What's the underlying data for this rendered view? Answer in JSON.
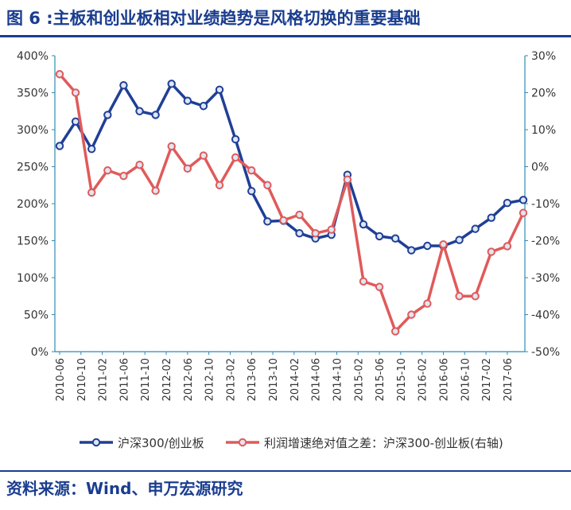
{
  "title": "图 6 :主板和创业板相对业绩趋势是风格切换的重要基础",
  "source": "资料来源：Wind、申万宏源研究",
  "colors": {
    "series1": "#1f3f96",
    "series2": "#e05a5a",
    "axis": "#2d8cb0",
    "title": "#1a3d8f"
  },
  "chart_data": {
    "type": "line",
    "x": [
      "2010-06",
      "2010-08",
      "2010-10",
      "2010-12",
      "2011-02",
      "2011-04",
      "2011-06",
      "2011-08",
      "2011-10",
      "2011-12",
      "2012-02",
      "2012-04",
      "2012-06",
      "2012-08",
      "2012-10",
      "2012-12",
      "2013-02",
      "2013-04",
      "2013-06",
      "2013-08",
      "2013-10",
      "2013-12",
      "2014-02",
      "2014-04",
      "2014-06",
      "2014-08",
      "2014-10",
      "2014-12",
      "2015-02",
      "2015-04",
      "2015-06",
      "2015-08",
      "2015-10",
      "2015-12",
      "2016-02",
      "2016-04",
      "2016-06",
      "2016-08",
      "2016-10",
      "2016-12",
      "2017-02",
      "2017-04",
      "2017-06",
      "2017-08"
    ],
    "x_tick_labels": [
      "2010-06",
      "2010-10",
      "2011-02",
      "2011-06",
      "2011-10",
      "2012-02",
      "2012-06",
      "2012-10",
      "2013-02",
      "2013-06",
      "2013-10",
      "2014-02",
      "2014-06",
      "2014-10",
      "2015-02",
      "2015-06",
      "2015-10",
      "2016-02",
      "2016-06",
      "2016-10",
      "2017-02",
      "2017-06"
    ],
    "y_left": {
      "range": [
        0,
        400
      ],
      "ticks": [
        "0%",
        "50%",
        "100%",
        "150%",
        "200%",
        "250%",
        "300%",
        "350%",
        "400%"
      ]
    },
    "y_right": {
      "range": [
        -50,
        30
      ],
      "ticks": [
        "-50%",
        "-40%",
        "-30%",
        "-20%",
        "-10%",
        "0%",
        "10%",
        "20%",
        "30%"
      ]
    },
    "series": [
      {
        "name": "沪深300/创业板",
        "axis": "left",
        "x": [
          "2010-06",
          "2010-09",
          "2010-12",
          "2011-03",
          "2011-06",
          "2011-09",
          "2011-12",
          "2012-03",
          "2012-06",
          "2012-09",
          "2012-12",
          "2013-03",
          "2013-06",
          "2013-09",
          "2013-12",
          "2014-03",
          "2014-06",
          "2014-09",
          "2014-12",
          "2015-03",
          "2015-06",
          "2015-09",
          "2015-12",
          "2016-03",
          "2016-06",
          "2016-09",
          "2016-12",
          "2017-03",
          "2017-06",
          "2017-09"
        ],
        "values": [
          278,
          311,
          274,
          320,
          360,
          325,
          320,
          362,
          339,
          332,
          354,
          287,
          217,
          176,
          177,
          160,
          153,
          158,
          239,
          172,
          156,
          153,
          137,
          143,
          143,
          151,
          166,
          181,
          201,
          205
        ]
      },
      {
        "name": "利润增速绝对值之差：沪深300-创业板(右轴)",
        "axis": "right",
        "x": [
          "2010-06",
          "2010-09",
          "2010-12",
          "2011-03",
          "2011-06",
          "2011-09",
          "2011-12",
          "2012-03",
          "2012-06",
          "2012-09",
          "2012-12",
          "2013-03",
          "2013-06",
          "2013-09",
          "2013-12",
          "2014-03",
          "2014-06",
          "2014-09",
          "2014-12",
          "2015-03",
          "2015-06",
          "2015-09",
          "2015-12",
          "2016-03",
          "2016-06",
          "2016-09",
          "2016-12",
          "2017-03",
          "2017-06",
          "2017-09"
        ],
        "values": [
          25,
          20,
          -7,
          -1,
          -2.5,
          0.5,
          -6.5,
          5.5,
          -0.5,
          3,
          -5,
          2.5,
          -1,
          -5,
          -14.5,
          -13,
          -18,
          -17,
          -3.5,
          -31,
          -32.5,
          -44.5,
          -40,
          -37,
          -21,
          -35,
          -35,
          -23,
          -21.5,
          -12.5
        ]
      }
    ],
    "legend": "bottom"
  }
}
